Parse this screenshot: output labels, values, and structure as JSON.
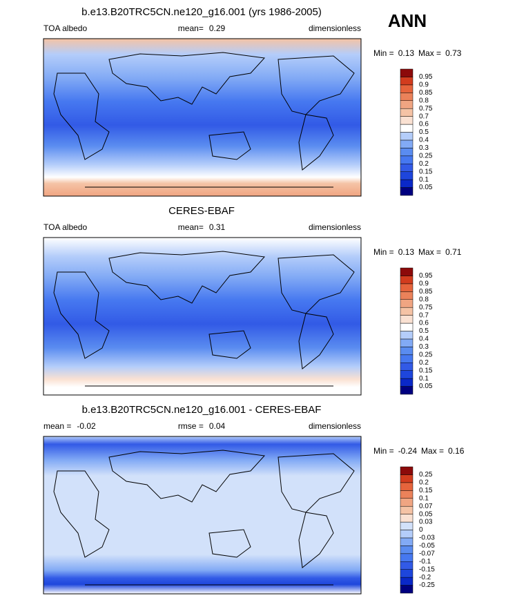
{
  "header": {
    "season": "ANN"
  },
  "panels": [
    {
      "title": "b.e13.B20TRC5CN.ne120_g16.001 (yrs 1986-2005)",
      "subtitles": [
        {
          "label": "TOA albedo"
        },
        {
          "label": "mean=",
          "value": 0.29
        },
        {
          "label": "dimensionless"
        }
      ],
      "min_label": "Min =",
      "min": 0.13,
      "max_label": "Max =",
      "max": 0.73,
      "levels": [
        0.05,
        0.1,
        0.15,
        0.2,
        0.25,
        0.3,
        0.4,
        0.5,
        0.6,
        0.7,
        0.75,
        0.8,
        0.85,
        0.9,
        0.95
      ],
      "colors": [
        "#000080",
        "#0a28c8",
        "#1e46dc",
        "#325ae6",
        "#4678f0",
        "#5a8cf0",
        "#82aaf5",
        "#b4cdfa",
        "#ffffff",
        "#fae1d2",
        "#f5c3a5",
        "#f0a582",
        "#eb825a",
        "#e6643c",
        "#d23c1e",
        "#8c0a0a"
      ]
    },
    {
      "title": "CERES-EBAF",
      "subtitles": [
        {
          "label": "TOA albedo"
        },
        {
          "label": "mean=",
          "value": 0.31
        },
        {
          "label": "dimensionless"
        }
      ],
      "min_label": "Min =",
      "min": 0.13,
      "max_label": "Max =",
      "max": 0.71,
      "levels": [
        0.05,
        0.1,
        0.15,
        0.2,
        0.25,
        0.3,
        0.4,
        0.5,
        0.6,
        0.7,
        0.75,
        0.8,
        0.85,
        0.9,
        0.95
      ],
      "colors": [
        "#000080",
        "#0a28c8",
        "#1e46dc",
        "#325ae6",
        "#4678f0",
        "#5a8cf0",
        "#82aaf5",
        "#b4cdfa",
        "#ffffff",
        "#fae1d2",
        "#f5c3a5",
        "#f0a582",
        "#eb825a",
        "#e6643c",
        "#d23c1e",
        "#8c0a0a"
      ]
    },
    {
      "title": "b.e13.B20TRC5CN.ne120_g16.001 - CERES-EBAF",
      "subtitles": [
        {
          "label": "mean =",
          "value": -0.02
        },
        {
          "label": "rmse =",
          "value": 0.04
        },
        {
          "label": "dimensionless"
        }
      ],
      "min_label": "Min =",
      "min": -0.24,
      "max_label": "Max =",
      "max": 0.16,
      "levels": [
        -0.25,
        -0.2,
        -0.15,
        -0.1,
        -0.07,
        -0.05,
        -0.03,
        0,
        0.03,
        0.05,
        0.07,
        0.1,
        0.15,
        0.2,
        0.25
      ],
      "colors": [
        "#000080",
        "#0a28c8",
        "#1e46dc",
        "#325ae6",
        "#4678f0",
        "#5a8cf0",
        "#82aaf5",
        "#b4cdfa",
        "#d2e1fa",
        "#fae1d2",
        "#f5c3a5",
        "#f0a582",
        "#eb825a",
        "#e6643c",
        "#d23c1e",
        "#8c0a0a"
      ]
    }
  ]
}
